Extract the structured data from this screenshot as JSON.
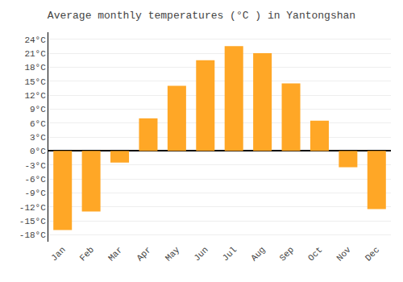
{
  "chart_data": {
    "type": "bar",
    "title": "Average monthly temperatures (°C ) in Yantongshan",
    "categories": [
      "Jan",
      "Feb",
      "Mar",
      "Apr",
      "May",
      "Jun",
      "Jul",
      "Aug",
      "Sep",
      "Oct",
      "Nov",
      "Dec"
    ],
    "values": [
      -17,
      -13,
      -2.5,
      7,
      14,
      19.5,
      22.5,
      21,
      14.5,
      6.5,
      -3.5,
      -12.5
    ],
    "color": "#FFA726",
    "ylim": [
      -19.5,
      25.5
    ],
    "yticks": [
      {
        "value": -18,
        "label": "-18°C"
      },
      {
        "value": -15,
        "label": "-15°C"
      },
      {
        "value": -12,
        "label": "-12°C"
      },
      {
        "value": -9,
        "label": "-9°C"
      },
      {
        "value": -6,
        "label": "-6°C"
      },
      {
        "value": -3,
        "label": "-3°C"
      },
      {
        "value": 0,
        "label": "0°C"
      },
      {
        "value": 3,
        "label": "3°C"
      },
      {
        "value": 6,
        "label": "6°C"
      },
      {
        "value": 9,
        "label": "9°C"
      },
      {
        "value": 12,
        "label": "12°C"
      },
      {
        "value": 15,
        "label": "15°C"
      },
      {
        "value": 18,
        "label": "18°C"
      },
      {
        "value": 21,
        "label": "21°C"
      },
      {
        "value": 24,
        "label": "24°C"
      }
    ],
    "grid": true
  }
}
